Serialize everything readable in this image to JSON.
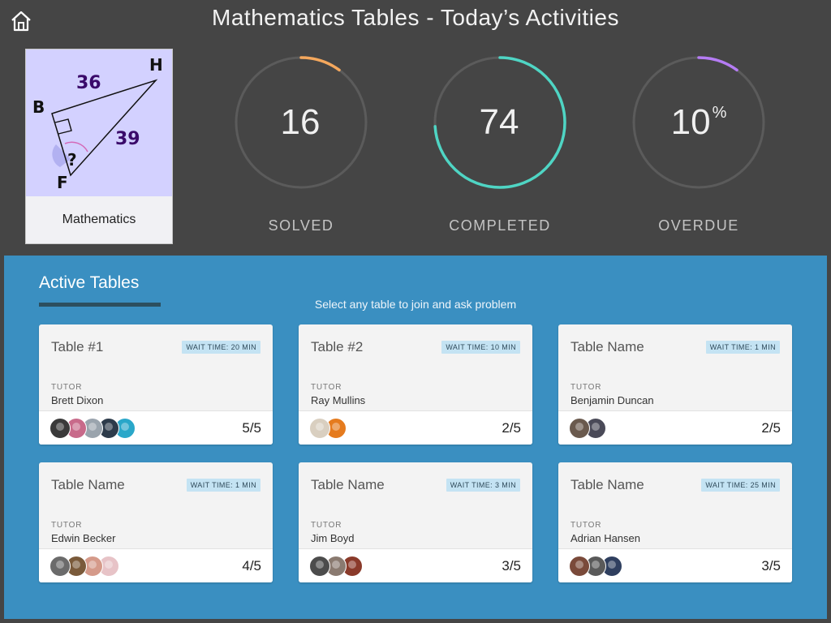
{
  "header": {
    "title": "Mathematics Tables - Today’s Activities"
  },
  "subject": {
    "label": "Mathematics",
    "diagram": {
      "side_top": "36",
      "side_right": "39",
      "vertex_b": "B",
      "vertex_h": "H",
      "vertex_f": "F",
      "unknown": "?"
    }
  },
  "stats": [
    {
      "value": "16",
      "suffix": "",
      "label": "SOLVED",
      "progress": 0.1,
      "color": "#f5a85d"
    },
    {
      "value": "74",
      "suffix": "",
      "label": "COMPLETED",
      "progress": 0.74,
      "color": "#4fd5c4"
    },
    {
      "value": "10",
      "suffix": "%",
      "label": "OVERDUE",
      "progress": 0.1,
      "color": "#b57cf4"
    }
  ],
  "active": {
    "title": "Active Tables",
    "hint": "Select any table to join and ask problem",
    "tutor_label": "TUTOR",
    "tables": [
      {
        "name": "Table #1",
        "wait": "WAIT TIME: 20 MIN",
        "tutor": "Brett Dixon",
        "occupancy": "5/5",
        "avatars": [
          "#3a3a3a",
          "#c86a8a",
          "#9aa4ad",
          "#2d3b4a",
          "#2aa7c9"
        ]
      },
      {
        "name": "Table #2",
        "wait": "WAIT TIME: 10 MIN",
        "tutor": "Ray Mullins",
        "occupancy": "2/5",
        "avatars": [
          "#d9cfc0",
          "#e57b1e"
        ]
      },
      {
        "name": "Table Name",
        "wait": "WAIT TIME: 1 MIN",
        "tutor": "Benjamin Duncan",
        "occupancy": "2/5",
        "avatars": [
          "#6a5a4e",
          "#4a4a58"
        ]
      },
      {
        "name": "Table Name",
        "wait": "WAIT TIME: 1 MIN",
        "tutor": "Edwin Becker",
        "occupancy": "4/5",
        "avatars": [
          "#6b6b6b",
          "#7a5a3a",
          "#d59a8a",
          "#e7c3c7"
        ]
      },
      {
        "name": "Table Name",
        "wait": "WAIT TIME: 3 MIN",
        "tutor": "Jim Boyd",
        "occupancy": "3/5",
        "avatars": [
          "#4c4c4c",
          "#8a7a70",
          "#8a3a2a"
        ]
      },
      {
        "name": "Table Name",
        "wait": "WAIT TIME: 25 MIN",
        "tutor": "Adrian Hansen",
        "occupancy": "3/5",
        "avatars": [
          "#7a4a3a",
          "#5a5a5a",
          "#2f3f5f"
        ]
      }
    ]
  },
  "icons": {
    "home": "home-icon"
  }
}
